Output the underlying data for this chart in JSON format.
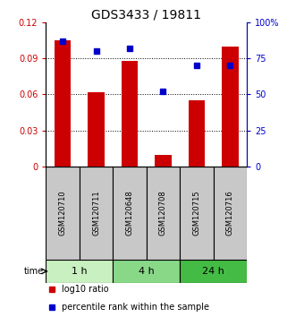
{
  "title": "GDS3433 / 19811",
  "samples": [
    "GSM120710",
    "GSM120711",
    "GSM120648",
    "GSM120708",
    "GSM120715",
    "GSM120716"
  ],
  "log10_ratio": [
    0.105,
    0.062,
    0.088,
    0.01,
    0.055,
    0.1
  ],
  "percentile_rank": [
    87,
    80,
    82,
    52,
    70,
    70
  ],
  "bar_color": "#cc0000",
  "square_color": "#0000cc",
  "left_ylim": [
    0,
    0.12
  ],
  "right_ylim": [
    0,
    100
  ],
  "left_yticks": [
    0,
    0.03,
    0.06,
    0.09,
    0.12
  ],
  "left_yticklabels": [
    "0",
    "0.03",
    "0.06",
    "0.09",
    "0.12"
  ],
  "right_yticks": [
    0,
    25,
    50,
    75,
    100
  ],
  "right_yticklabels": [
    "0",
    "25",
    "50",
    "75",
    "100%"
  ],
  "time_groups": [
    {
      "label": "1 h",
      "span": [
        0,
        2
      ],
      "color": "#c8f0c0"
    },
    {
      "label": "4 h",
      "span": [
        2,
        4
      ],
      "color": "#88d888"
    },
    {
      "label": "24 h",
      "span": [
        4,
        6
      ],
      "color": "#44bb44"
    }
  ],
  "xlabel_color": "#cc0000",
  "ylabel_right_color": "#0000cc",
  "bar_width": 0.5,
  "sample_box_color": "#c8c8c8",
  "title_fontsize": 10,
  "tick_fontsize": 7,
  "sample_fontsize": 6,
  "time_fontsize": 8,
  "legend_fontsize": 7
}
